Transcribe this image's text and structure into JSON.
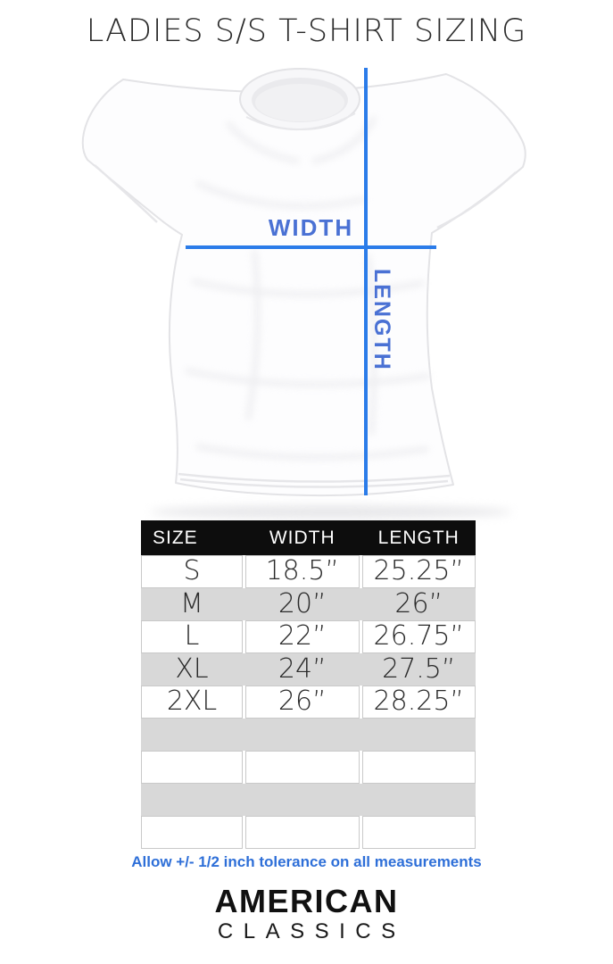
{
  "title": "LADIES S/S T-SHIRT SIZING",
  "diagram": {
    "width_label": "WIDTH",
    "length_label": "LENGTH"
  },
  "size_chart": {
    "headers": [
      "SIZE",
      "WIDTH",
      "LENGTH"
    ],
    "rows": [
      {
        "size": "S",
        "width": "18.5”",
        "length": "25.25”"
      },
      {
        "size": "M",
        "width": "20”",
        "length": "26”"
      },
      {
        "size": "L",
        "width": "22”",
        "length": "26.75”"
      },
      {
        "size": "XL",
        "width": "24”",
        "length": "27.5”"
      },
      {
        "size": "2XL",
        "width": "26”",
        "length": "28.25”"
      }
    ],
    "empty_rows": 4
  },
  "tolerance_note": "Allow +/- 1/2 inch tolerance on all measurements",
  "brand": {
    "name": "AMERICAN",
    "subname": "CLASSICS"
  },
  "colors": {
    "measure_line": "#2b7ce9",
    "measure_label": "#4a71d4",
    "note_text": "#2e6fd8",
    "header_bg": "#0d0d0d",
    "row_alt_bg": "#d8d8d8"
  }
}
